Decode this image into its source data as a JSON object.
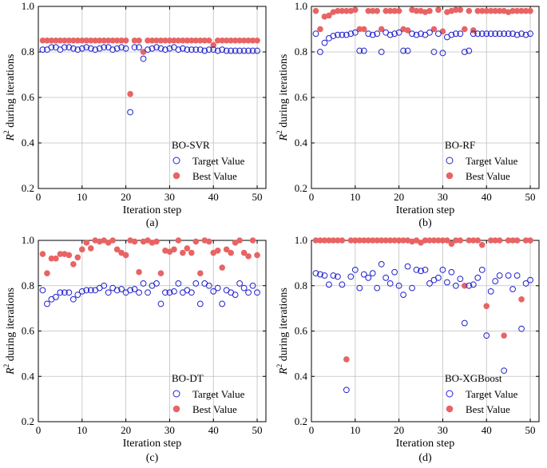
{
  "colors": {
    "target": "#2222cc",
    "best": "#e86464",
    "grid": "#bfbfbf"
  },
  "chart_data": [
    {
      "type": "scatter",
      "caption": "(a)",
      "legend_title": "BO-SVR",
      "xlabel": "Iteration step",
      "ylabel_main": "R",
      "ylabel_sup": "2",
      "ylabel_rest": " during iterations",
      "xlim": [
        0,
        52
      ],
      "ylim": [
        0.2,
        1.0
      ],
      "xticks": [
        0,
        10,
        20,
        30,
        40,
        50
      ],
      "yticks": [
        0.2,
        0.4,
        0.6,
        0.8,
        1.0
      ],
      "ytick_labels": [
        "0.2",
        "0.4",
        "0.6",
        "0.8",
        "1.0"
      ],
      "series": [
        {
          "name": "Target Value",
          "style": "open",
          "x": [
            1,
            2,
            3,
            4,
            5,
            6,
            7,
            8,
            9,
            10,
            11,
            12,
            13,
            14,
            15,
            16,
            17,
            18,
            19,
            20,
            21,
            22,
            23,
            24,
            25,
            26,
            27,
            28,
            29,
            30,
            31,
            32,
            33,
            34,
            35,
            36,
            37,
            38,
            39,
            40,
            41,
            42,
            43,
            44,
            45,
            46,
            47,
            48,
            49,
            50
          ],
          "values": [
            0.81,
            0.81,
            0.82,
            0.82,
            0.81,
            0.82,
            0.82,
            0.815,
            0.81,
            0.815,
            0.82,
            0.815,
            0.81,
            0.815,
            0.82,
            0.82,
            0.81,
            0.815,
            0.82,
            0.815,
            0.535,
            0.82,
            0.82,
            0.77,
            0.81,
            0.815,
            0.82,
            0.815,
            0.81,
            0.815,
            0.82,
            0.81,
            0.815,
            0.81,
            0.81,
            0.81,
            0.81,
            0.805,
            0.81,
            0.81,
            0.805,
            0.81,
            0.805,
            0.805,
            0.805,
            0.805,
            0.805,
            0.805,
            0.805,
            0.805
          ]
        },
        {
          "name": "Best Value",
          "style": "filled",
          "x": [
            1,
            2,
            3,
            4,
            5,
            6,
            7,
            8,
            9,
            10,
            11,
            12,
            13,
            14,
            15,
            16,
            17,
            18,
            19,
            20,
            21,
            22,
            23,
            24,
            25,
            26,
            27,
            28,
            29,
            30,
            31,
            32,
            33,
            34,
            35,
            36,
            37,
            38,
            39,
            40,
            41,
            42,
            43,
            44,
            45,
            46,
            47,
            48,
            49,
            50
          ],
          "values": [
            0.85,
            0.85,
            0.85,
            0.85,
            0.85,
            0.85,
            0.85,
            0.85,
            0.85,
            0.85,
            0.85,
            0.85,
            0.85,
            0.85,
            0.85,
            0.85,
            0.85,
            0.85,
            0.85,
            0.85,
            0.615,
            0.85,
            0.85,
            0.8,
            0.85,
            0.85,
            0.85,
            0.85,
            0.85,
            0.85,
            0.85,
            0.85,
            0.85,
            0.85,
            0.85,
            0.85,
            0.85,
            0.85,
            0.85,
            0.83,
            0.85,
            0.85,
            0.85,
            0.85,
            0.85,
            0.85,
            0.85,
            0.85,
            0.85,
            0.85
          ]
        }
      ]
    },
    {
      "type": "scatter",
      "caption": "(b)",
      "legend_title": "BO-RF",
      "xlabel": "Iteration step",
      "ylabel_main": "R",
      "ylabel_sup": "2",
      "ylabel_rest": " during iterations",
      "xlim": [
        0,
        52
      ],
      "ylim": [
        0.2,
        1.0
      ],
      "xticks": [
        0,
        10,
        20,
        30,
        40,
        50
      ],
      "yticks": [
        0.2,
        0.4,
        0.6,
        0.8,
        1.0
      ],
      "ytick_labels": [
        "0.2",
        "0.4",
        "0.6",
        "0.8",
        "1.0"
      ],
      "series": [
        {
          "name": "Target Value",
          "style": "open",
          "x": [
            1,
            2,
            3,
            4,
            5,
            6,
            7,
            8,
            9,
            10,
            11,
            12,
            13,
            14,
            15,
            16,
            17,
            18,
            19,
            20,
            21,
            22,
            23,
            24,
            25,
            26,
            27,
            28,
            29,
            30,
            31,
            32,
            33,
            34,
            35,
            36,
            37,
            38,
            39,
            40,
            41,
            42,
            43,
            44,
            45,
            46,
            47,
            48,
            49,
            50
          ],
          "values": [
            0.88,
            0.8,
            0.84,
            0.86,
            0.87,
            0.875,
            0.875,
            0.875,
            0.88,
            0.885,
            0.805,
            0.805,
            0.88,
            0.875,
            0.88,
            0.8,
            0.885,
            0.875,
            0.88,
            0.885,
            0.805,
            0.805,
            0.88,
            0.875,
            0.88,
            0.875,
            0.885,
            0.8,
            0.88,
            0.795,
            0.865,
            0.875,
            0.88,
            0.88,
            0.8,
            0.805,
            0.88,
            0.88,
            0.88,
            0.88,
            0.88,
            0.88,
            0.88,
            0.88,
            0.88,
            0.88,
            0.875,
            0.88,
            0.875,
            0.88
          ]
        },
        {
          "name": "Best Value",
          "style": "filled",
          "x": [
            1,
            2,
            3,
            4,
            5,
            6,
            7,
            8,
            9,
            10,
            11,
            12,
            13,
            14,
            15,
            16,
            17,
            18,
            19,
            20,
            21,
            22,
            23,
            24,
            25,
            26,
            27,
            28,
            29,
            30,
            31,
            32,
            33,
            34,
            35,
            36,
            37,
            38,
            39,
            40,
            41,
            42,
            43,
            44,
            45,
            46,
            47,
            48,
            49,
            50
          ],
          "values": [
            0.98,
            0.9,
            0.955,
            0.96,
            0.975,
            0.98,
            0.98,
            0.98,
            0.98,
            0.985,
            0.9,
            0.9,
            0.98,
            0.98,
            0.98,
            0.9,
            0.98,
            0.98,
            0.98,
            0.98,
            0.9,
            0.895,
            0.985,
            0.98,
            0.98,
            0.975,
            0.98,
            0.9,
            0.985,
            0.89,
            0.975,
            0.98,
            0.985,
            0.985,
            0.9,
            0.98,
            0.895,
            0.98,
            0.98,
            0.98,
            0.98,
            0.98,
            0.98,
            0.98,
            0.975,
            0.98,
            0.98,
            0.98,
            0.98,
            0.98
          ]
        }
      ]
    },
    {
      "type": "scatter",
      "caption": "(c)",
      "legend_title": "BO-DT",
      "xlabel": "Iteration step",
      "ylabel_main": "R",
      "ylabel_sup": "2",
      "ylabel_rest": " during iterations",
      "xlim": [
        0,
        52
      ],
      "ylim": [
        0.2,
        1.0
      ],
      "xticks": [
        0,
        10,
        20,
        30,
        40,
        50
      ],
      "yticks": [
        0.2,
        0.4,
        0.6,
        0.8,
        1.0
      ],
      "ytick_labels": [
        "0.2",
        "0.4",
        "0.6",
        "0.8",
        "1.0"
      ],
      "series": [
        {
          "name": "Target Value",
          "style": "open",
          "x": [
            1,
            2,
            3,
            4,
            5,
            6,
            7,
            8,
            9,
            10,
            11,
            12,
            13,
            14,
            15,
            16,
            17,
            18,
            19,
            20,
            21,
            22,
            23,
            24,
            25,
            26,
            27,
            28,
            29,
            30,
            31,
            32,
            33,
            34,
            35,
            36,
            37,
            38,
            39,
            40,
            41,
            42,
            43,
            44,
            45,
            46,
            47,
            48,
            49,
            50
          ],
          "values": [
            0.78,
            0.72,
            0.74,
            0.75,
            0.77,
            0.77,
            0.77,
            0.74,
            0.76,
            0.775,
            0.78,
            0.78,
            0.78,
            0.79,
            0.8,
            0.77,
            0.79,
            0.78,
            0.785,
            0.77,
            0.78,
            0.785,
            0.77,
            0.81,
            0.77,
            0.8,
            0.81,
            0.72,
            0.77,
            0.77,
            0.775,
            0.81,
            0.77,
            0.78,
            0.77,
            0.81,
            0.72,
            0.81,
            0.8,
            0.775,
            0.79,
            0.72,
            0.78,
            0.77,
            0.76,
            0.81,
            0.79,
            0.77,
            0.8,
            0.77
          ]
        },
        {
          "name": "Best Value",
          "style": "filled",
          "x": [
            1,
            2,
            3,
            4,
            5,
            6,
            7,
            8,
            9,
            10,
            11,
            12,
            13,
            14,
            15,
            16,
            17,
            18,
            19,
            20,
            21,
            22,
            23,
            24,
            25,
            26,
            27,
            28,
            29,
            30,
            31,
            32,
            33,
            34,
            35,
            36,
            37,
            38,
            39,
            40,
            41,
            42,
            43,
            44,
            45,
            46,
            47,
            48,
            49,
            50
          ],
          "values": [
            0.94,
            0.855,
            0.92,
            0.92,
            0.94,
            0.94,
            0.935,
            0.895,
            0.925,
            0.96,
            0.99,
            0.965,
            1.0,
            0.995,
            1.0,
            0.99,
            1.0,
            0.96,
            0.945,
            0.935,
            1.0,
            0.995,
            0.86,
            0.995,
            1.0,
            0.99,
            0.995,
            0.855,
            0.955,
            0.95,
            0.96,
            1.0,
            0.945,
            0.965,
            0.945,
            0.995,
            0.855,
            1.0,
            0.995,
            0.945,
            0.955,
            0.88,
            0.96,
            0.945,
            0.99,
            1.0,
            0.945,
            0.93,
            1.0,
            0.935
          ]
        }
      ]
    },
    {
      "type": "scatter",
      "caption": "(d)",
      "legend_title": "BO-XGBoost",
      "xlabel": "Iteration step",
      "ylabel_main": "R",
      "ylabel_sup": "2",
      "ylabel_rest": " during iterations",
      "xlim": [
        0,
        52
      ],
      "ylim": [
        0.2,
        1.0
      ],
      "xticks": [
        0,
        10,
        20,
        30,
        40,
        50
      ],
      "yticks": [
        0.2,
        0.4,
        0.6,
        0.8,
        1.0
      ],
      "ytick_labels": [
        "0.2",
        "0.4",
        "0.6",
        "0.8",
        "1.0"
      ],
      "series": [
        {
          "name": "Target Value",
          "style": "open",
          "x": [
            1,
            2,
            3,
            4,
            5,
            6,
            7,
            8,
            9,
            10,
            11,
            12,
            13,
            14,
            15,
            16,
            17,
            18,
            19,
            20,
            21,
            22,
            23,
            24,
            25,
            26,
            27,
            28,
            29,
            30,
            31,
            32,
            33,
            34,
            35,
            36,
            37,
            38,
            39,
            40,
            41,
            42,
            43,
            44,
            45,
            46,
            47,
            48,
            49,
            50
          ],
          "values": [
            0.855,
            0.85,
            0.845,
            0.805,
            0.845,
            0.84,
            0.805,
            0.34,
            0.84,
            0.87,
            0.79,
            0.85,
            0.835,
            0.855,
            0.79,
            0.895,
            0.835,
            0.81,
            0.86,
            0.8,
            0.76,
            0.885,
            0.79,
            0.87,
            0.865,
            0.87,
            0.81,
            0.825,
            0.835,
            0.87,
            0.815,
            0.86,
            0.8,
            0.83,
            0.635,
            0.8,
            0.805,
            0.835,
            0.87,
            0.58,
            0.775,
            0.82,
            0.845,
            0.425,
            0.845,
            0.785,
            0.845,
            0.61,
            0.81,
            0.825
          ]
        },
        {
          "name": "Best Value",
          "style": "filled",
          "x": [
            1,
            2,
            3,
            4,
            5,
            6,
            7,
            8,
            9,
            10,
            11,
            12,
            13,
            14,
            15,
            16,
            17,
            18,
            19,
            20,
            21,
            22,
            23,
            24,
            25,
            26,
            27,
            28,
            29,
            30,
            31,
            32,
            33,
            34,
            35,
            36,
            37,
            38,
            39,
            40,
            41,
            42,
            43,
            44,
            45,
            46,
            47,
            48,
            49,
            50
          ],
          "values": [
            1.0,
            1.0,
            1.0,
            1.0,
            1.0,
            1.0,
            1.0,
            0.475,
            1.0,
            1.0,
            1.0,
            1.0,
            1.0,
            1.0,
            1.0,
            1.0,
            1.0,
            1.0,
            1.0,
            1.0,
            1.0,
            1.0,
            0.995,
            1.0,
            0.99,
            1.0,
            1.0,
            1.0,
            1.0,
            1.0,
            1.0,
            0.985,
            1.0,
            1.0,
            0.8,
            1.0,
            1.0,
            1.0,
            0.98,
            0.71,
            1.0,
            1.0,
            1.0,
            0.58,
            1.0,
            1.0,
            1.0,
            0.74,
            1.0,
            1.0
          ]
        }
      ]
    }
  ]
}
